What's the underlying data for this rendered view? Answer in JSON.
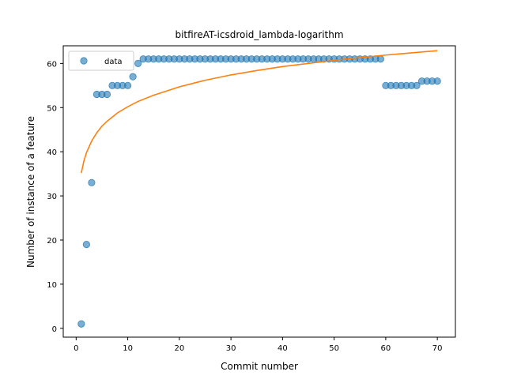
{
  "chart_data": {
    "type": "scatter",
    "title": "bitfireAT-icsdroid_lambda-logarithm",
    "xlabel": "Commit number",
    "ylabel": "Number of instance of a feature",
    "xlim": [
      -2.5,
      73.5
    ],
    "ylim": [
      -2.0,
      64.0
    ],
    "xticks": [
      0,
      10,
      20,
      30,
      40,
      50,
      60,
      70
    ],
    "yticks": [
      0,
      10,
      20,
      30,
      40,
      50,
      60
    ],
    "legend": {
      "position": "top-left",
      "entries": [
        "data"
      ]
    },
    "grid": false,
    "colors": {
      "data": "#1f77b4",
      "fit": "#ff7f0e"
    },
    "series": [
      {
        "name": "data",
        "kind": "scatter",
        "x": [
          1,
          2,
          3,
          4,
          5,
          6,
          7,
          8,
          9,
          10,
          11,
          12,
          13,
          14,
          15,
          16,
          17,
          18,
          19,
          20,
          21,
          22,
          23,
          24,
          25,
          26,
          27,
          28,
          29,
          30,
          31,
          32,
          33,
          34,
          35,
          36,
          37,
          38,
          39,
          40,
          41,
          42,
          43,
          44,
          45,
          46,
          47,
          48,
          49,
          50,
          51,
          52,
          53,
          54,
          55,
          56,
          57,
          58,
          59,
          60,
          61,
          62,
          63,
          64,
          65,
          66,
          67,
          68,
          69,
          70
        ],
        "y": [
          1,
          19,
          33,
          53,
          53,
          53,
          55,
          55,
          55,
          55,
          57,
          60,
          61,
          61,
          61,
          61,
          61,
          61,
          61,
          61,
          61,
          61,
          61,
          61,
          61,
          61,
          61,
          61,
          61,
          61,
          61,
          61,
          61,
          61,
          61,
          61,
          61,
          61,
          61,
          61,
          61,
          61,
          61,
          61,
          61,
          61,
          61,
          61,
          61,
          61,
          61,
          61,
          61,
          61,
          61,
          61,
          61,
          61,
          61,
          55,
          55,
          55,
          55,
          55,
          55,
          55,
          56,
          56,
          56,
          56
        ]
      },
      {
        "kind": "line",
        "x": [
          1,
          1.5,
          2,
          3,
          4,
          5,
          6,
          8,
          10,
          12,
          15,
          20,
          25,
          30,
          35,
          40,
          45,
          50,
          55,
          60,
          65,
          70
        ],
        "y": [
          35.2,
          37.9,
          39.8,
          42.4,
          44.3,
          45.8,
          46.9,
          48.8,
          50.2,
          51.4,
          52.8,
          54.7,
          56.2,
          57.4,
          58.4,
          59.3,
          60.0,
          60.7,
          61.3,
          61.9,
          62.4,
          62.9
        ]
      }
    ]
  }
}
